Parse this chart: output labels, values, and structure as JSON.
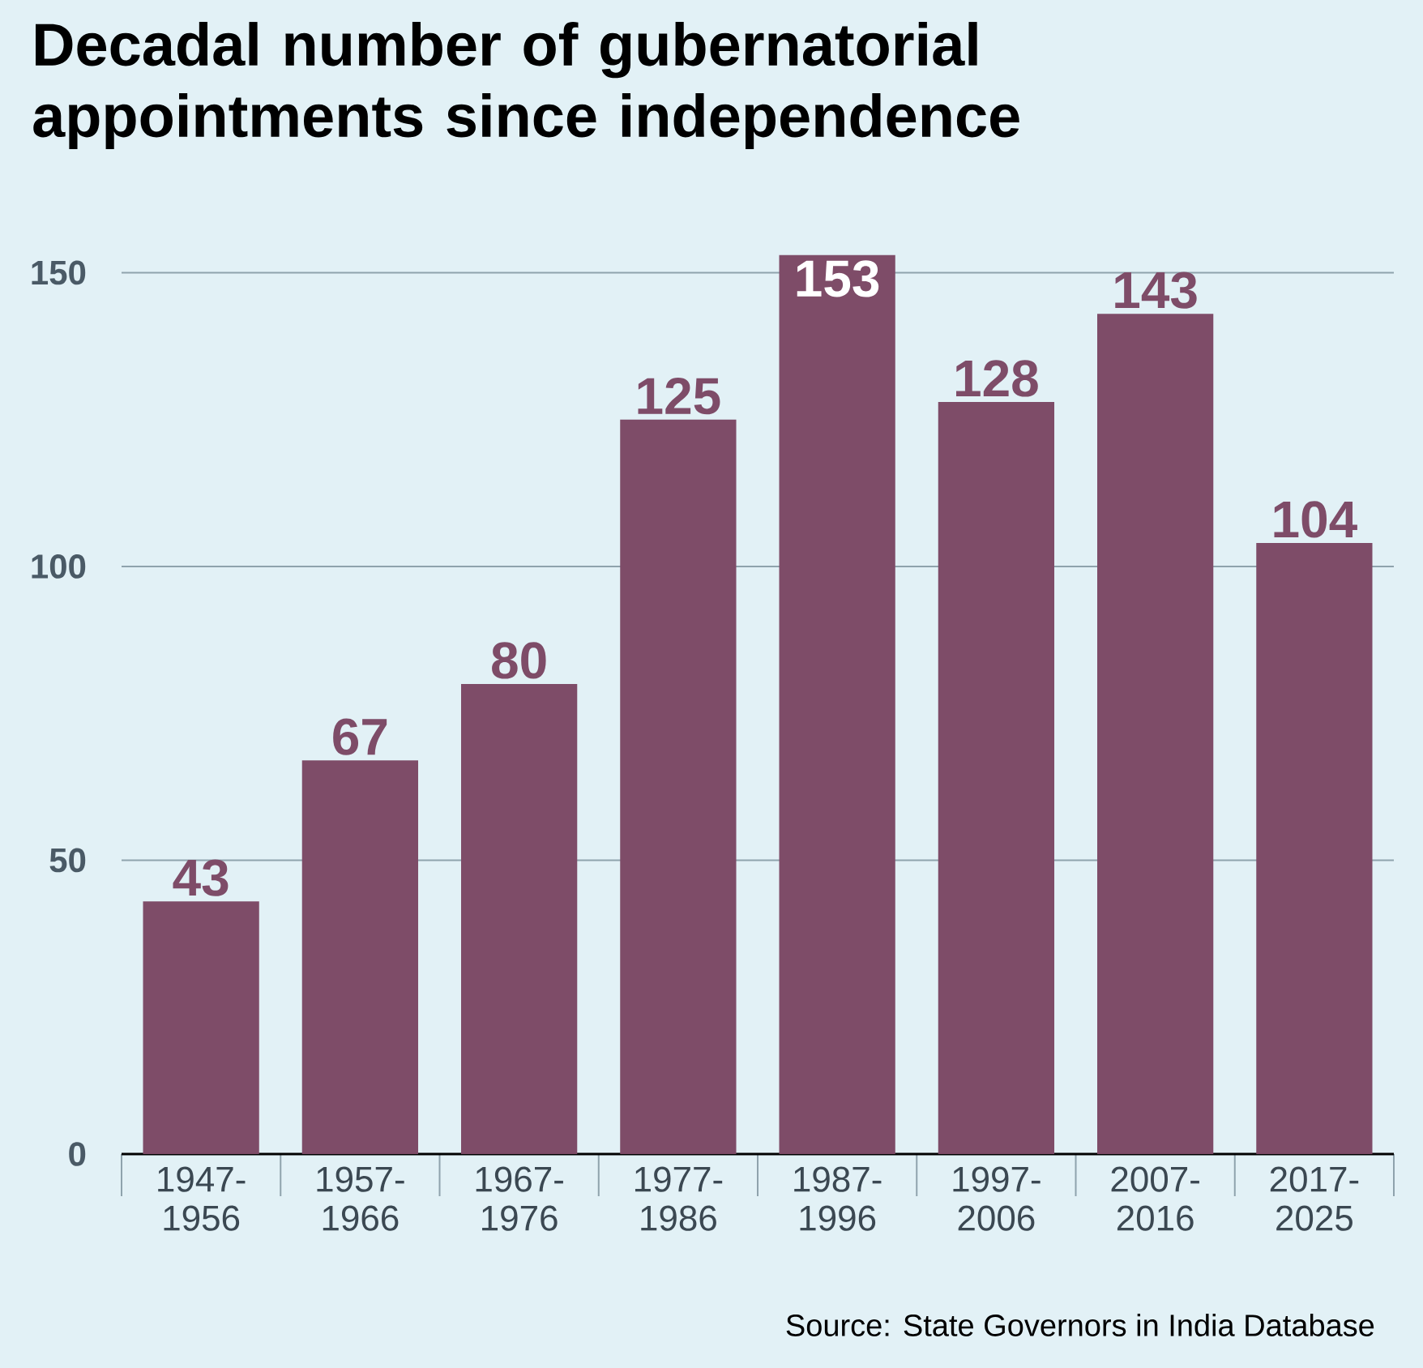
{
  "chart_data": {
    "type": "bar",
    "title": "Decadal number of gubernatorial appointments since independence",
    "categories": [
      "1947-1956",
      "1957-1966",
      "1967-1976",
      "1977-1986",
      "1987-1996",
      "1997-2006",
      "2007-2016",
      "2017-2025"
    ],
    "values": [
      43,
      67,
      80,
      125,
      153,
      128,
      143,
      104
    ],
    "color": "#7e4c68",
    "ylim": [
      0,
      153
    ],
    "yticks": [
      0,
      50,
      100,
      150
    ],
    "grid": "y",
    "data_labels": true,
    "annotations": [
      "Source: State Governors in India Database"
    ]
  }
}
